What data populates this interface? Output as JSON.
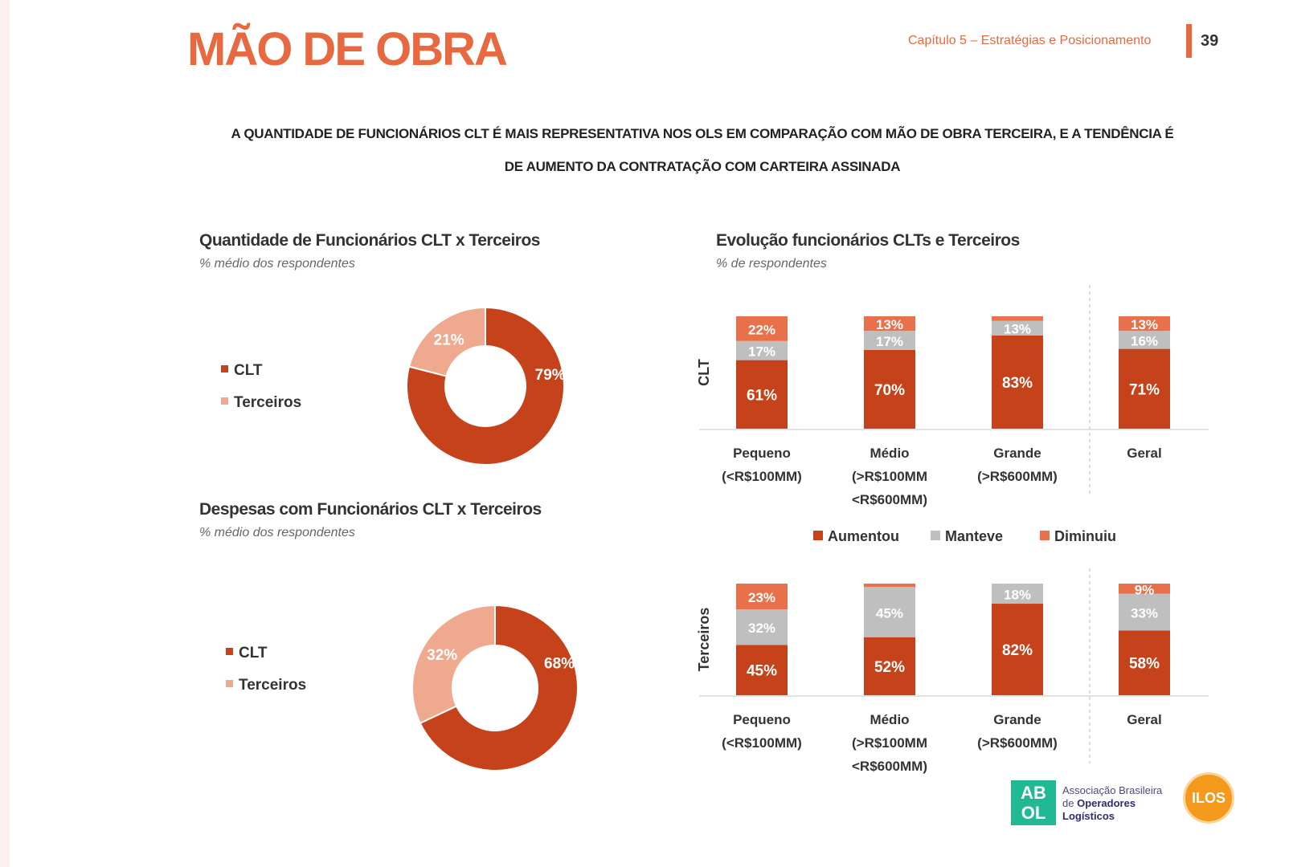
{
  "header": {
    "title": "MÃO DE OBRA",
    "chapter": "Capítulo 5 – Estratégias e Posicionamento",
    "page_number": "39"
  },
  "headline_line1": "A QUANTIDADE DE FUNCIONÁRIOS CLT É MAIS REPRESENTATIVA NOS OLS EM COMPARAÇÃO COM MÃO DE OBRA TERCEIRA, E A TENDÊNCIA É",
  "headline_line2": "DE AUMENTO DA CONTRATAÇÃO COM CARTEIRA ASSINADA",
  "colors": {
    "accent": "#e8683f",
    "aumentou": "#c6421a",
    "manteve": "#bfbfbf",
    "diminuiu": "#e8704a",
    "clt": "#c6421a",
    "terceiros": "#efa98e"
  },
  "chart_data": [
    {
      "type": "pie",
      "donut": true,
      "title": "Quantidade de Funcionários CLT x Terceiros",
      "subtitle": "% médio dos respondentes",
      "categories": [
        "CLT",
        "Terceiros"
      ],
      "values": [
        79,
        21
      ],
      "labels": [
        "79%",
        "21%"
      ],
      "legend_position": "left"
    },
    {
      "type": "pie",
      "donut": true,
      "title": "Despesas com Funcionários CLT x Terceiros",
      "subtitle": "% médio dos respondentes",
      "categories": [
        "CLT",
        "Terceiros"
      ],
      "values": [
        68,
        32
      ],
      "labels": [
        "68%",
        "32%"
      ],
      "legend_position": "left"
    },
    {
      "type": "bar",
      "stacked": true,
      "title": "Evolução funcionários CLTs e Terceiros",
      "subtitle": "% de respondentes",
      "legend": [
        "Aumentou",
        "Manteve",
        "Diminuiu"
      ],
      "legend_position": "middle",
      "panels": [
        {
          "ylabel": "CLT",
          "categories": [
            [
              "Pequeno",
              "(<R$100MM)"
            ],
            [
              "Médio",
              "(>R$100MM",
              "<R$600MM)"
            ],
            [
              "Grande",
              "(>R$600MM)"
            ],
            [
              "Geral"
            ]
          ],
          "series": [
            {
              "name": "Aumentou",
              "values": [
                61,
                70,
                83,
                71
              ],
              "labels": [
                "61%",
                "70%",
                "83%",
                "71%"
              ]
            },
            {
              "name": "Manteve",
              "values": [
                17,
                17,
                13,
                16
              ],
              "labels": [
                "17%",
                "17%",
                "13%",
                "16%"
              ]
            },
            {
              "name": "Diminuiu",
              "values": [
                22,
                13,
                4,
                13
              ],
              "labels": [
                "22%",
                "13%",
                "",
                "13%"
              ]
            }
          ]
        },
        {
          "ylabel": "Terceiros",
          "categories": [
            [
              "Pequeno",
              "(<R$100MM)"
            ],
            [
              "Médio",
              "(>R$100MM",
              "<R$600MM)"
            ],
            [
              "Grande",
              "(>R$600MM)"
            ],
            [
              "Geral"
            ]
          ],
          "series": [
            {
              "name": "Aumentou",
              "values": [
                45,
                52,
                82,
                58
              ],
              "labels": [
                "45%",
                "52%",
                "82%",
                "58%"
              ]
            },
            {
              "name": "Manteve",
              "values": [
                32,
                45,
                18,
                33
              ],
              "labels": [
                "32%",
                "45%",
                "18%",
                "33%"
              ]
            },
            {
              "name": "Diminuiu",
              "values": [
                23,
                3,
                0,
                9
              ],
              "labels": [
                "23%",
                "",
                "",
                "9%"
              ]
            }
          ]
        }
      ]
    }
  ],
  "logos": {
    "abol_mark": "AB OL",
    "abol_line1": "Associação Brasileira",
    "abol_line2_prefix": "de",
    "abol_line2": "Operadores",
    "abol_line3": "Logísticos",
    "ilos": "ILOS"
  }
}
